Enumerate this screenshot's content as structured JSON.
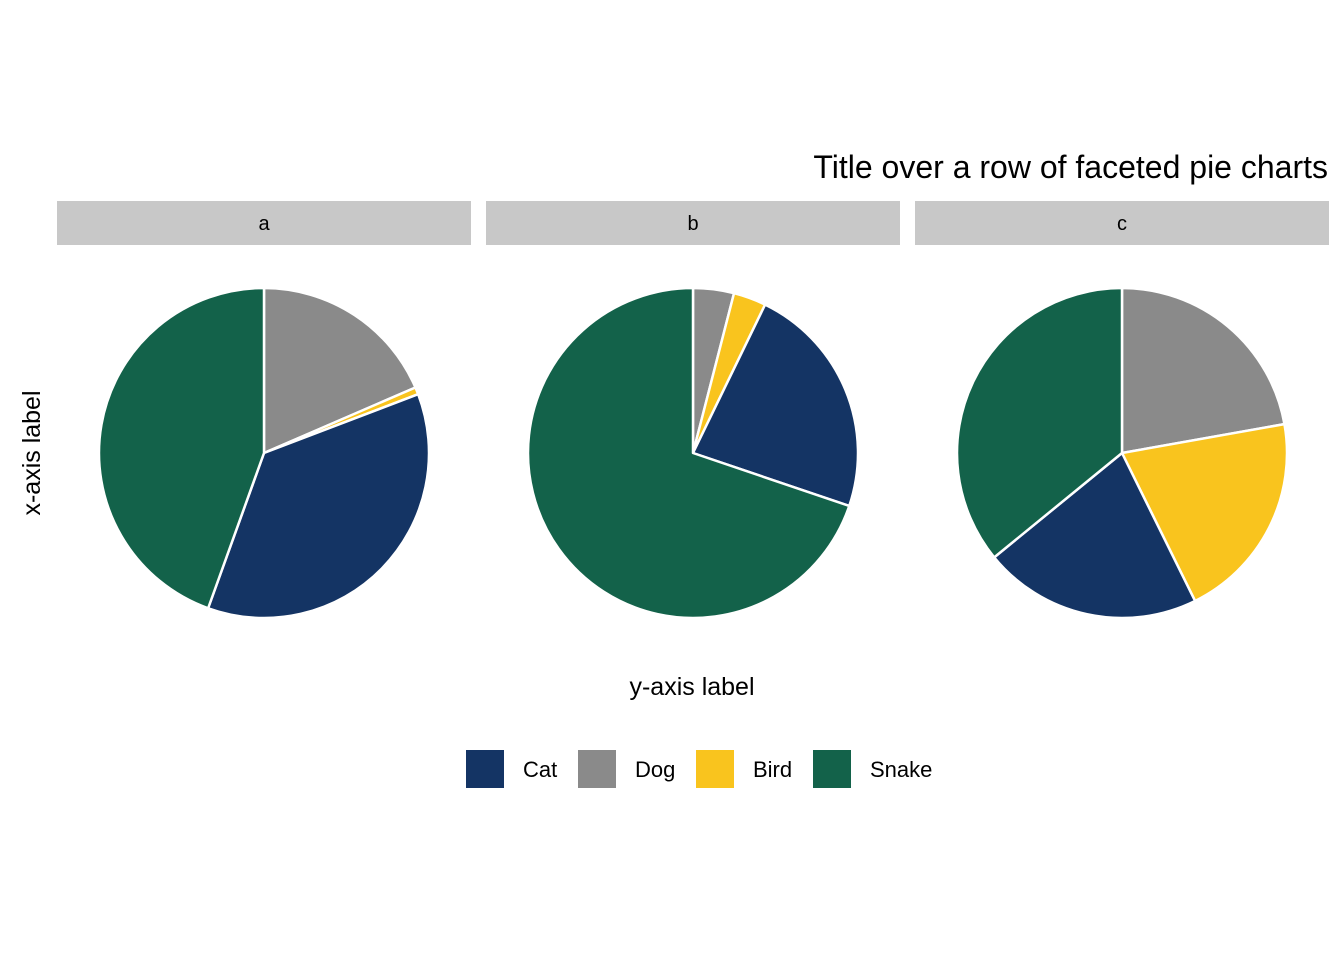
{
  "chart_data": {
    "type": "pie",
    "title": "Title over a row of faceted pie charts",
    "xlabel": "y-axis label",
    "ylabel": "x-axis label",
    "legend": {
      "position": "bottom",
      "entries": [
        {
          "label": "Cat",
          "color": "#143464"
        },
        {
          "label": "Dog",
          "color": "#8a8a8a"
        },
        {
          "label": "Bird",
          "color": "#f9c41e"
        },
        {
          "label": "Snake",
          "color": "#13624a"
        }
      ]
    },
    "categories": [
      "Dog",
      "Bird",
      "Cat",
      "Snake"
    ],
    "facets": [
      {
        "label": "a",
        "values": {
          "Dog": 18.5,
          "Bird": 0.7,
          "Cat": 36.3,
          "Snake": 44.5
        }
      },
      {
        "label": "b",
        "values": {
          "Dog": 4.0,
          "Bird": 3.2,
          "Cat": 23.0,
          "Snake": 69.8
        }
      },
      {
        "label": "c",
        "values": {
          "Dog": 22.2,
          "Bird": 20.5,
          "Cat": 21.4,
          "Snake": 35.9
        }
      }
    ],
    "slice_order": [
      "Dog",
      "Bird",
      "Cat",
      "Snake"
    ],
    "grid": false,
    "slice_border_color": "#ffffff",
    "strip_color": "#c8c8c8"
  }
}
